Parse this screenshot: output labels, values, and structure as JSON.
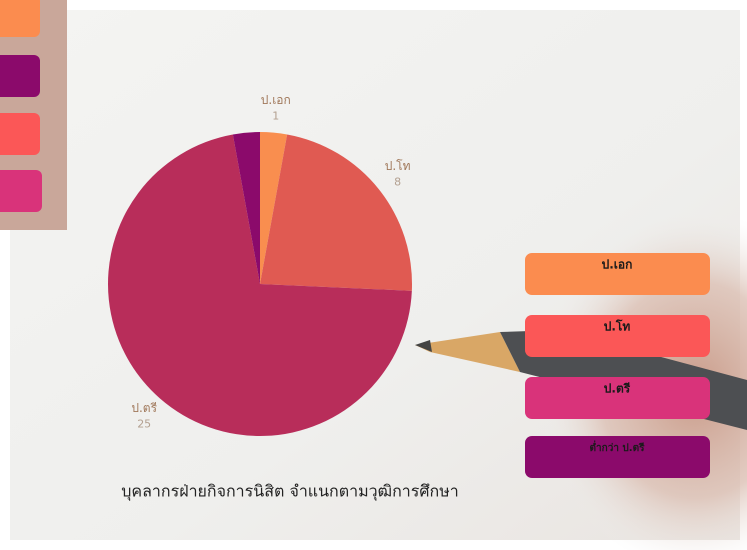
{
  "chart_data": {
    "type": "pie",
    "title": "บุคลากรฝ่ายกิจการนิสิต จำแนกตามวุฒิการศึกษา",
    "categories": [
      "ป.เอก",
      "ป.โท",
      "ป.ตรี",
      "ต่ำกว่า ป.ตรี"
    ],
    "values": [
      1,
      8,
      25,
      1
    ],
    "colors": [
      "#f98e4f",
      "#e05a52",
      "#b82d5a",
      "#8b0a6b"
    ],
    "legend_colors": [
      "#fb8c4f",
      "#fb5757",
      "#d9337a",
      "#8b0a6b"
    ]
  }
}
